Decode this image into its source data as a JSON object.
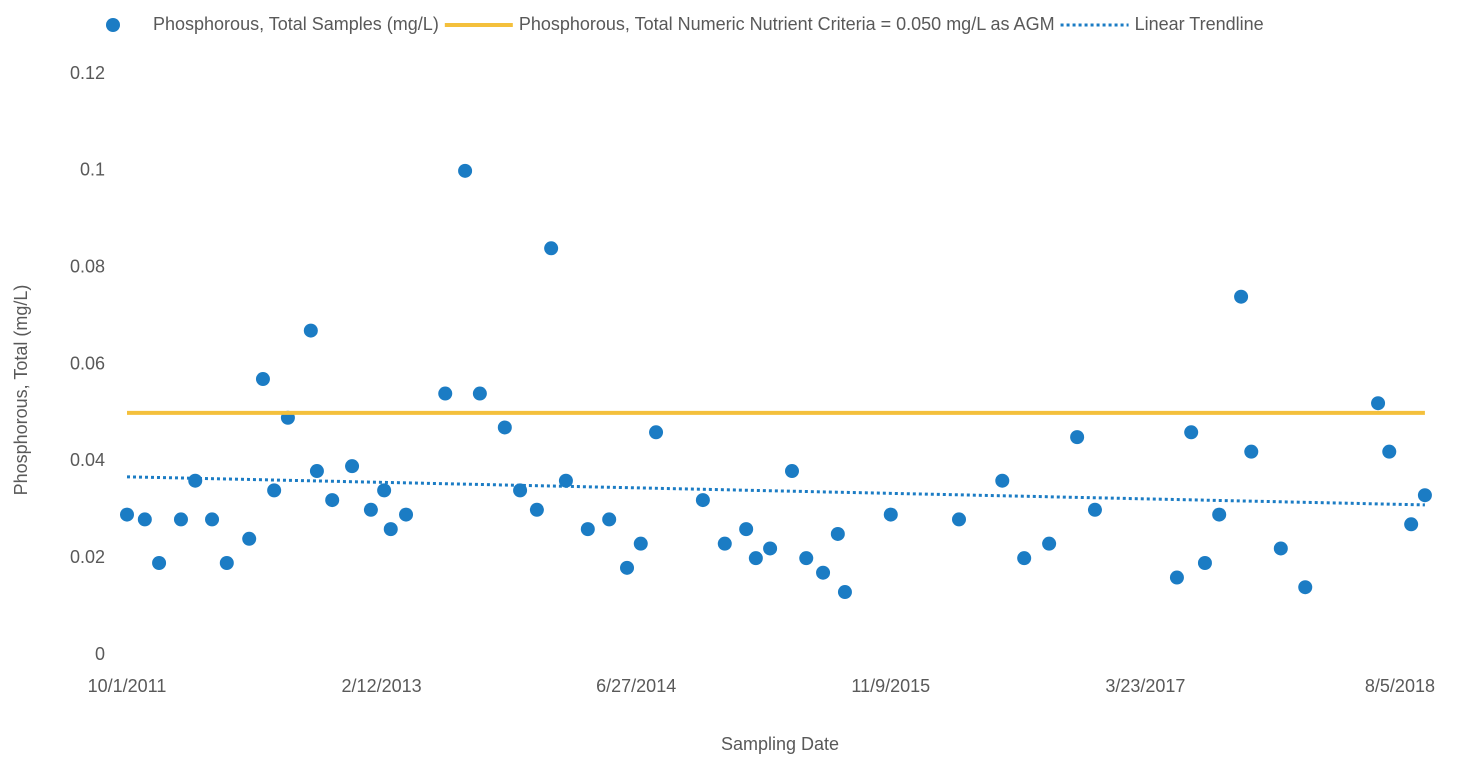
{
  "chart_data": {
    "type": "scatter",
    "x_label": "Sampling Date",
    "y_label": "Phosphorous, Total (mg/L)",
    "xlim": [
      40817,
      43376
    ],
    "xticks": [
      {
        "value": 40817,
        "label": "10/1/2011"
      },
      {
        "value": 41317,
        "label": "2/12/2013"
      },
      {
        "value": 41817,
        "label": "6/27/2014"
      },
      {
        "value": 42317,
        "label": "11/9/2015"
      },
      {
        "value": 42817,
        "label": "3/23/2017"
      },
      {
        "value": 43317,
        "label": "8/5/2018"
      }
    ],
    "ylim": [
      0,
      0.12
    ],
    "yticks": [
      0,
      0.02,
      0.04,
      0.06,
      0.08,
      0.1,
      0.12
    ],
    "grid": false,
    "legend": "top",
    "series": [
      {
        "name": "Phosphorous, Total Samples (mg/L)",
        "color": "#1b7cc4",
        "mode": "markers",
        "x": [
          40817,
          40852,
          40880,
          40923,
          40951,
          40984,
          41013,
          41057,
          41084,
          41106,
          41133,
          41178,
          41190,
          41220,
          41259,
          41296,
          41322,
          41335,
          41365,
          41442,
          41481,
          41510,
          41559,
          41589,
          41622,
          41650,
          41679,
          41722,
          41764,
          41799,
          41826,
          41856,
          41948,
          41991,
          42033,
          42052,
          42080,
          42123,
          42151,
          42184,
          42213,
          42227,
          42317,
          42451,
          42536,
          42579,
          42628,
          42683,
          42718,
          42879,
          42907,
          42934,
          42962,
          43005,
          43025,
          43083,
          43131,
          43274,
          43296,
          43339,
          43366
        ],
        "values": [
          0.029,
          0.028,
          0.019,
          0.028,
          0.036,
          0.028,
          0.019,
          0.024,
          0.057,
          0.034,
          0.049,
          0.067,
          0.038,
          0.032,
          0.039,
          0.03,
          0.034,
          0.026,
          0.029,
          0.054,
          0.1,
          0.054,
          0.047,
          0.034,
          0.03,
          0.084,
          0.036,
          0.026,
          0.028,
          0.018,
          0.023,
          0.046,
          0.032,
          0.023,
          0.026,
          0.02,
          0.022,
          0.038,
          0.02,
          0.017,
          0.025,
          0.013,
          0.029,
          0.028,
          0.036,
          0.02,
          0.023,
          0.045,
          0.03,
          0.016,
          0.046,
          0.019,
          0.029,
          0.074,
          0.042,
          0.022,
          0.014,
          0.052,
          0.042,
          0.027,
          0.033
        ]
      },
      {
        "name": "Phosphorous, Total Numeric Nutrient Criteria = 0.050 mg/L as AGM",
        "color": "#f4c03c",
        "mode": "line",
        "x": [
          40817,
          43366
        ],
        "values": [
          0.05,
          0.05
        ]
      },
      {
        "name": "Linear Trendline",
        "color": "#1b7cc4",
        "mode": "dotted",
        "x": [
          40817,
          43366
        ],
        "values": [
          0.0368,
          0.031
        ]
      }
    ]
  }
}
